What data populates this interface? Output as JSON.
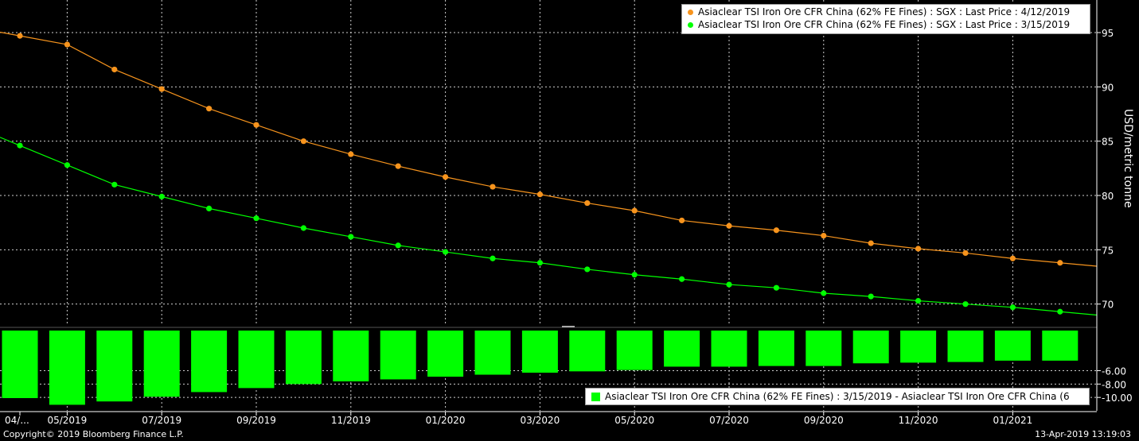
{
  "chart_data": {
    "type": "line",
    "x": [
      "04/2019",
      "05/2019",
      "06/2019",
      "07/2019",
      "08/2019",
      "09/2019",
      "10/2019",
      "11/2019",
      "12/2019",
      "01/2020",
      "02/2020",
      "03/2020",
      "04/2020",
      "05/2020",
      "06/2020",
      "07/2020",
      "08/2020",
      "09/2020",
      "10/2020",
      "11/2020",
      "12/2020",
      "01/2021",
      "02/2021"
    ],
    "x_tick_labels": [
      "04/...",
      "05/2019",
      "07/2019",
      "09/2019",
      "11/2019",
      "01/2020",
      "03/2020",
      "05/2020",
      "07/2020",
      "09/2020",
      "11/2020",
      "01/2021"
    ],
    "ylabel": "USD/metric tonne",
    "ylim": [
      68,
      98
    ],
    "y_ticks": [
      70,
      75,
      80,
      85,
      90,
      95
    ],
    "series": [
      {
        "name": "Asiaclear TSI Iron Ore CFR China (62% FE Fines) : SGX : Last Price : 4/12/2019",
        "color": "#f7941d",
        "values": [
          94.7,
          93.9,
          91.6,
          89.8,
          88.0,
          86.5,
          85.0,
          83.8,
          82.7,
          81.7,
          80.8,
          80.1,
          79.3,
          78.6,
          77.7,
          77.2,
          76.8,
          76.3,
          75.6,
          75.1,
          74.7,
          74.2,
          73.8
        ]
      },
      {
        "name": "Asiaclear TSI Iron Ore CFR China (62% FE Fines) : SGX : Last Price : 3/15/2019",
        "color": "#00ff00",
        "values": [
          84.6,
          82.8,
          81.0,
          79.9,
          78.8,
          77.9,
          77.0,
          76.2,
          75.4,
          74.8,
          74.2,
          73.8,
          73.2,
          72.7,
          72.3,
          71.8,
          71.5,
          71.0,
          70.7,
          70.3,
          70.0,
          69.7,
          69.3
        ]
      }
    ],
    "diff": {
      "name": "Asiaclear TSI Iron Ore CFR China (62% FE Fines) : 3/15/2019 - Asiaclear TSI Iron Ore CFR China (6",
      "color": "#00ff00",
      "values": [
        -10.1,
        -11.1,
        -10.6,
        -9.9,
        -9.2,
        -8.6,
        -8.0,
        -7.6,
        -7.3,
        -6.9,
        -6.6,
        -6.3,
        -6.1,
        -5.9,
        -5.4,
        -5.4,
        -5.3,
        -5.3,
        -4.9,
        -4.8,
        -4.7,
        -4.5,
        -4.5
      ],
      "ylim": [
        -12,
        0
      ],
      "y_ticks": [
        -6.0,
        -8.0,
        -10.0
      ],
      "y_tick_labels": [
        "-6.00",
        "-8.00",
        "-10.00"
      ]
    }
  },
  "legend": {
    "top": [
      "Asiaclear TSI Iron Ore CFR China (62% FE Fines) : SGX : Last Price : 4/12/2019",
      "Asiaclear TSI Iron Ore CFR China (62% FE Fines) : SGX : Last Price : 3/15/2019"
    ],
    "bottom": "Asiaclear TSI Iron Ore CFR China (62% FE Fines) : 3/15/2019 - Asiaclear TSI Iron Ore CFR China (6"
  },
  "footer": {
    "copyright": "Copyright© 2019 Bloomberg Finance L.P.",
    "timestamp": "13-Apr-2019 13:19:03"
  }
}
